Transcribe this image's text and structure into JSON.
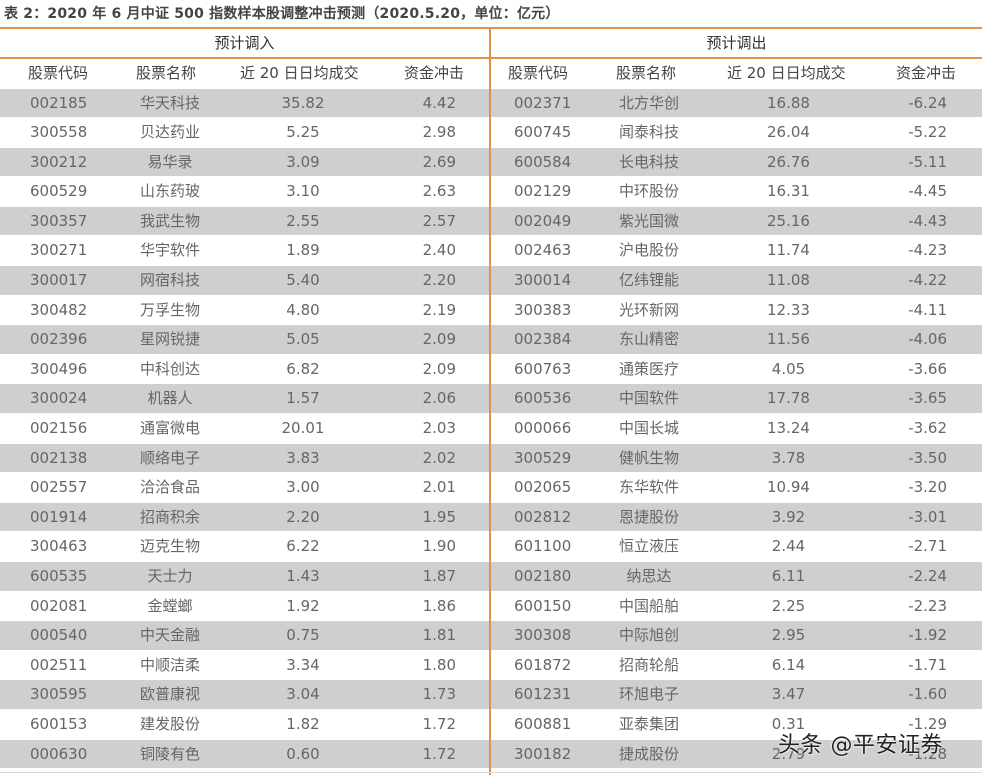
{
  "title": "表 2：2020 年 6 月中证 500 指数样本股调整冲击预测（2020.5.20，单位：亿元）",
  "colors": {
    "accent_line": "#e0914a",
    "row_gray": "#cdcfd1"
  },
  "sections": {
    "in": {
      "label": "预计调入"
    },
    "out": {
      "label": "预计调出"
    }
  },
  "columns": [
    "股票代码",
    "股票名称",
    "近 20 日日均成交",
    "资金冲击"
  ],
  "rows_in": [
    {
      "code": "002185",
      "name": "华天科技",
      "volume": "35.82",
      "impact": "4.42"
    },
    {
      "code": "300558",
      "name": "贝达药业",
      "volume": "5.25",
      "impact": "2.98"
    },
    {
      "code": "300212",
      "name": "易华录",
      "volume": "3.09",
      "impact": "2.69"
    },
    {
      "code": "600529",
      "name": "山东药玻",
      "volume": "3.10",
      "impact": "2.63"
    },
    {
      "code": "300357",
      "name": "我武生物",
      "volume": "2.55",
      "impact": "2.57"
    },
    {
      "code": "300271",
      "name": "华宇软件",
      "volume": "1.89",
      "impact": "2.40"
    },
    {
      "code": "300017",
      "name": "网宿科技",
      "volume": "5.40",
      "impact": "2.20"
    },
    {
      "code": "300482",
      "name": "万孚生物",
      "volume": "4.80",
      "impact": "2.19"
    },
    {
      "code": "002396",
      "name": "星网锐捷",
      "volume": "5.05",
      "impact": "2.09"
    },
    {
      "code": "300496",
      "name": "中科创达",
      "volume": "6.82",
      "impact": "2.09"
    },
    {
      "code": "300024",
      "name": "机器人",
      "volume": "1.57",
      "impact": "2.06"
    },
    {
      "code": "002156",
      "name": "通富微电",
      "volume": "20.01",
      "impact": "2.03"
    },
    {
      "code": "002138",
      "name": "顺络电子",
      "volume": "3.83",
      "impact": "2.02"
    },
    {
      "code": "002557",
      "name": "洽洽食品",
      "volume": "3.00",
      "impact": "2.01"
    },
    {
      "code": "001914",
      "name": "招商积余",
      "volume": "2.20",
      "impact": "1.95"
    },
    {
      "code": "300463",
      "name": "迈克生物",
      "volume": "6.22",
      "impact": "1.90"
    },
    {
      "code": "600535",
      "name": "天士力",
      "volume": "1.43",
      "impact": "1.87"
    },
    {
      "code": "002081",
      "name": "金螳螂",
      "volume": "1.92",
      "impact": "1.86"
    },
    {
      "code": "000540",
      "name": "中天金融",
      "volume": "0.75",
      "impact": "1.81"
    },
    {
      "code": "002511",
      "name": "中顺洁柔",
      "volume": "3.34",
      "impact": "1.80"
    },
    {
      "code": "300595",
      "name": "欧普康视",
      "volume": "3.04",
      "impact": "1.73"
    },
    {
      "code": "600153",
      "name": "建发股份",
      "volume": "1.82",
      "impact": "1.72"
    },
    {
      "code": "000630",
      "name": "铜陵有色",
      "volume": "0.60",
      "impact": "1.72"
    }
  ],
  "rows_out": [
    {
      "code": "002371",
      "name": "北方华创",
      "volume": "16.88",
      "impact": "-6.24"
    },
    {
      "code": "600745",
      "name": "闻泰科技",
      "volume": "26.04",
      "impact": "-5.22"
    },
    {
      "code": "600584",
      "name": "长电科技",
      "volume": "26.76",
      "impact": "-5.11"
    },
    {
      "code": "002129",
      "name": "中环股份",
      "volume": "16.31",
      "impact": "-4.45"
    },
    {
      "code": "002049",
      "name": "紫光国微",
      "volume": "25.16",
      "impact": "-4.43"
    },
    {
      "code": "002463",
      "name": "沪电股份",
      "volume": "11.74",
      "impact": "-4.23"
    },
    {
      "code": "300014",
      "name": "亿纬锂能",
      "volume": "11.08",
      "impact": "-4.22"
    },
    {
      "code": "300383",
      "name": "光环新网",
      "volume": "12.33",
      "impact": "-4.11"
    },
    {
      "code": "002384",
      "name": "东山精密",
      "volume": "11.56",
      "impact": "-4.06"
    },
    {
      "code": "600763",
      "name": "通策医疗",
      "volume": "4.05",
      "impact": "-3.66"
    },
    {
      "code": "600536",
      "name": "中国软件",
      "volume": "17.78",
      "impact": "-3.65"
    },
    {
      "code": "000066",
      "name": "中国长城",
      "volume": "13.24",
      "impact": "-3.62"
    },
    {
      "code": "300529",
      "name": "健帆生物",
      "volume": "3.78",
      "impact": "-3.50"
    },
    {
      "code": "002065",
      "name": "东华软件",
      "volume": "10.94",
      "impact": "-3.20"
    },
    {
      "code": "002812",
      "name": "恩捷股份",
      "volume": "3.92",
      "impact": "-3.01"
    },
    {
      "code": "601100",
      "name": "恒立液压",
      "volume": "2.44",
      "impact": "-2.71"
    },
    {
      "code": "002180",
      "name": "纳思达",
      "volume": "6.11",
      "impact": "-2.24"
    },
    {
      "code": "600150",
      "name": "中国船舶",
      "volume": "2.25",
      "impact": "-2.23"
    },
    {
      "code": "300308",
      "name": "中际旭创",
      "volume": "2.95",
      "impact": "-1.92"
    },
    {
      "code": "601872",
      "name": "招商轮船",
      "volume": "6.14",
      "impact": "-1.71"
    },
    {
      "code": "601231",
      "name": "环旭电子",
      "volume": "3.47",
      "impact": "-1.60"
    },
    {
      "code": "600881",
      "name": "亚泰集团",
      "volume": "0.31",
      "impact": "-1.29"
    },
    {
      "code": "300182",
      "name": "捷成股份",
      "volume": "2.79",
      "impact": "-1.28"
    }
  ],
  "watermark": "头条 @平安证券"
}
